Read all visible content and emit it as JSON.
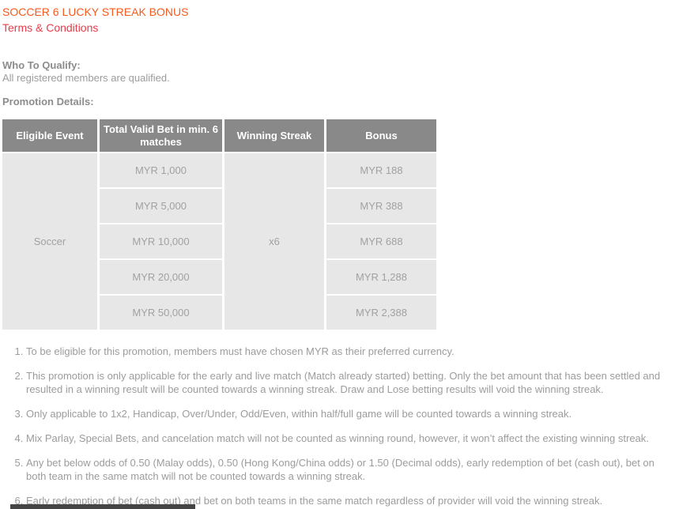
{
  "header": {
    "title": "SOCCER 6 LUCKY STREAK BONUS",
    "terms_link": "Terms & Conditions"
  },
  "qualify": {
    "heading": "Who To Qualify:",
    "text": "All registered members are qualified."
  },
  "details_heading": "Promotion Details:",
  "table": {
    "headers": [
      "Eligible Event",
      "Total Valid Bet in min. 6 matches",
      "Winning Streak",
      "Bonus"
    ],
    "eligible_event": "Soccer",
    "winning_streak": "x6",
    "rows": [
      {
        "bet": "MYR 1,000",
        "bonus": "MYR 188"
      },
      {
        "bet": "MYR 5,000",
        "bonus": "MYR 388"
      },
      {
        "bet": "MYR 10,000",
        "bonus": "MYR 688"
      },
      {
        "bet": "MYR 20,000",
        "bonus": "MYR 1,288"
      },
      {
        "bet": "MYR 50,000",
        "bonus": "MYR 2,388"
      }
    ]
  },
  "terms": [
    "To be eligible for this promotion, members must have chosen MYR as their preferred currency.",
    "This promotion is only applicable for the early and live match (Match already started) betting. Only the bet amount that has been settled and resulted in a winning result will be counted towards a winning streak. Draw and Lose betting results will void the winning streak.",
    "Only applicable to 1x2, Handicap, Over/Under, Odd/Even, within half/full game will be counted towards a winning streak.",
    "Mix Parlay, Special Bets, and cancelation match will not be counted as winning round, however, it won’t affect the existing winning streak.",
    "Any bet below odds of 0.50 (Malay odds), 0.50 (Hong Kong/China odds) or 1.50 (Decimal odds), early redemption of bet (cash out), bet on both team in the same match will not be counted towards a winning streak.",
    "Early redemption of bet (cash out) and bet on both teams in the same match regardless of provider will void the winning streak."
  ],
  "colors": {
    "title_orange": "#f55a1e",
    "link_red": "#e73c4a",
    "heading_gray": "#8c8c8c",
    "body_gray": "#9c9c9c",
    "table_header_bg": "#898989",
    "table_header_text": "#ffffff",
    "table_cell_bg": "#e7e7e7",
    "table_cell_text": "#a1a1a1"
  }
}
